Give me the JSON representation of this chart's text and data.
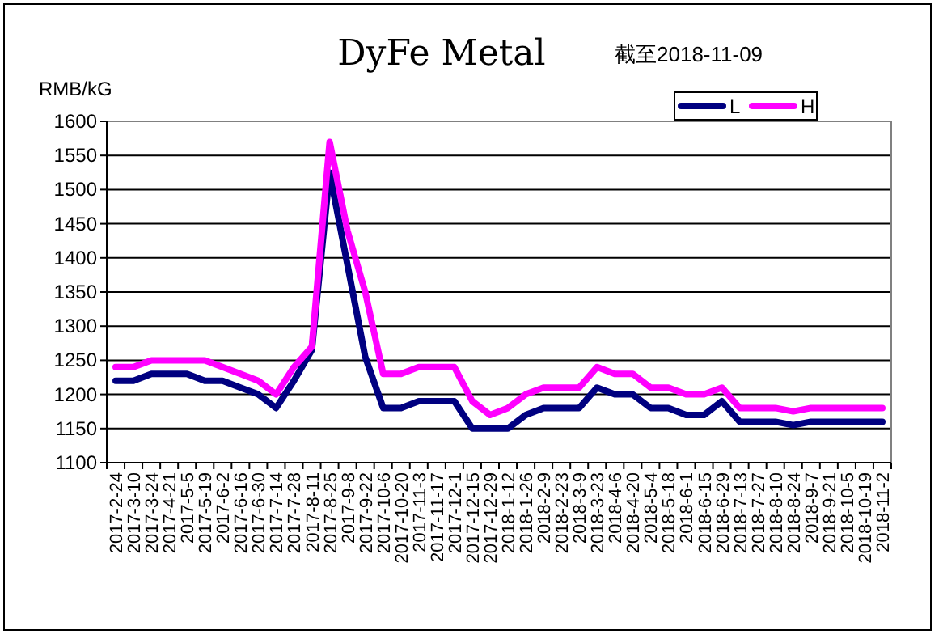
{
  "chart_data": {
    "type": "line",
    "title": "DyFe Metal",
    "subtitle": "截至2018-11-09",
    "ylabel": "RMB/kG",
    "categories": [
      "2017-2-24",
      "2017-3-10",
      "2017-3-24",
      "2017-4-21",
      "2017-5-5",
      "2017-5-19",
      "2017-6-2",
      "2017-6-16",
      "2017-6-30",
      "2017-7-14",
      "2017-7-28",
      "2017-8-11",
      "2017-8-25",
      "2017-9-8",
      "2017-9-22",
      "2017-10-6",
      "2017-10-20",
      "2017-11-3",
      "2017-11-17",
      "2017-12-1",
      "2017-12-15",
      "2017-12-29",
      "2018-1-12",
      "2018-1-26",
      "2018-2-9",
      "2018-2-23",
      "2018-3-9",
      "2018-3-23",
      "2018-4-6",
      "2018-4-20",
      "2018-5-4",
      "2018-5-18",
      "2018-6-1",
      "2018-6-15",
      "2018-6-29",
      "2018-7-13",
      "2018-7-27",
      "2018-8-10",
      "2018-8-24",
      "2018-9-7",
      "2018-9-21",
      "2018-10-5",
      "2018-10-19",
      "2018-11-2"
    ],
    "series": [
      {
        "name": "L",
        "color": "#000080",
        "values": [
          1220,
          1220,
          1230,
          1230,
          1230,
          1220,
          1220,
          1210,
          1200,
          1180,
          1220,
          1265,
          1525,
          1390,
          1255,
          1180,
          1180,
          1190,
          1190,
          1190,
          1150,
          1150,
          1150,
          1170,
          1180,
          1180,
          1180,
          1210,
          1200,
          1200,
          1180,
          1180,
          1170,
          1170,
          1190,
          1160,
          1160,
          1160,
          1155,
          1160,
          1160,
          1160,
          1160,
          1160
        ]
      },
      {
        "name": "H",
        "color": "#ff00ff",
        "values": [
          1240,
          1240,
          1250,
          1250,
          1250,
          1250,
          1240,
          1230,
          1220,
          1200,
          1240,
          1270,
          1570,
          1440,
          1350,
          1230,
          1230,
          1240,
          1240,
          1240,
          1190,
          1170,
          1180,
          1200,
          1210,
          1210,
          1210,
          1240,
          1230,
          1230,
          1210,
          1210,
          1200,
          1200,
          1210,
          1180,
          1180,
          1180,
          1175,
          1180,
          1180,
          1180,
          1180,
          1180
        ]
      }
    ],
    "ylim": [
      1100,
      1600
    ],
    "yticks": [
      1100,
      1150,
      1200,
      1250,
      1300,
      1350,
      1400,
      1450,
      1500,
      1550,
      1600
    ],
    "grid": "y",
    "legend": "top right"
  }
}
